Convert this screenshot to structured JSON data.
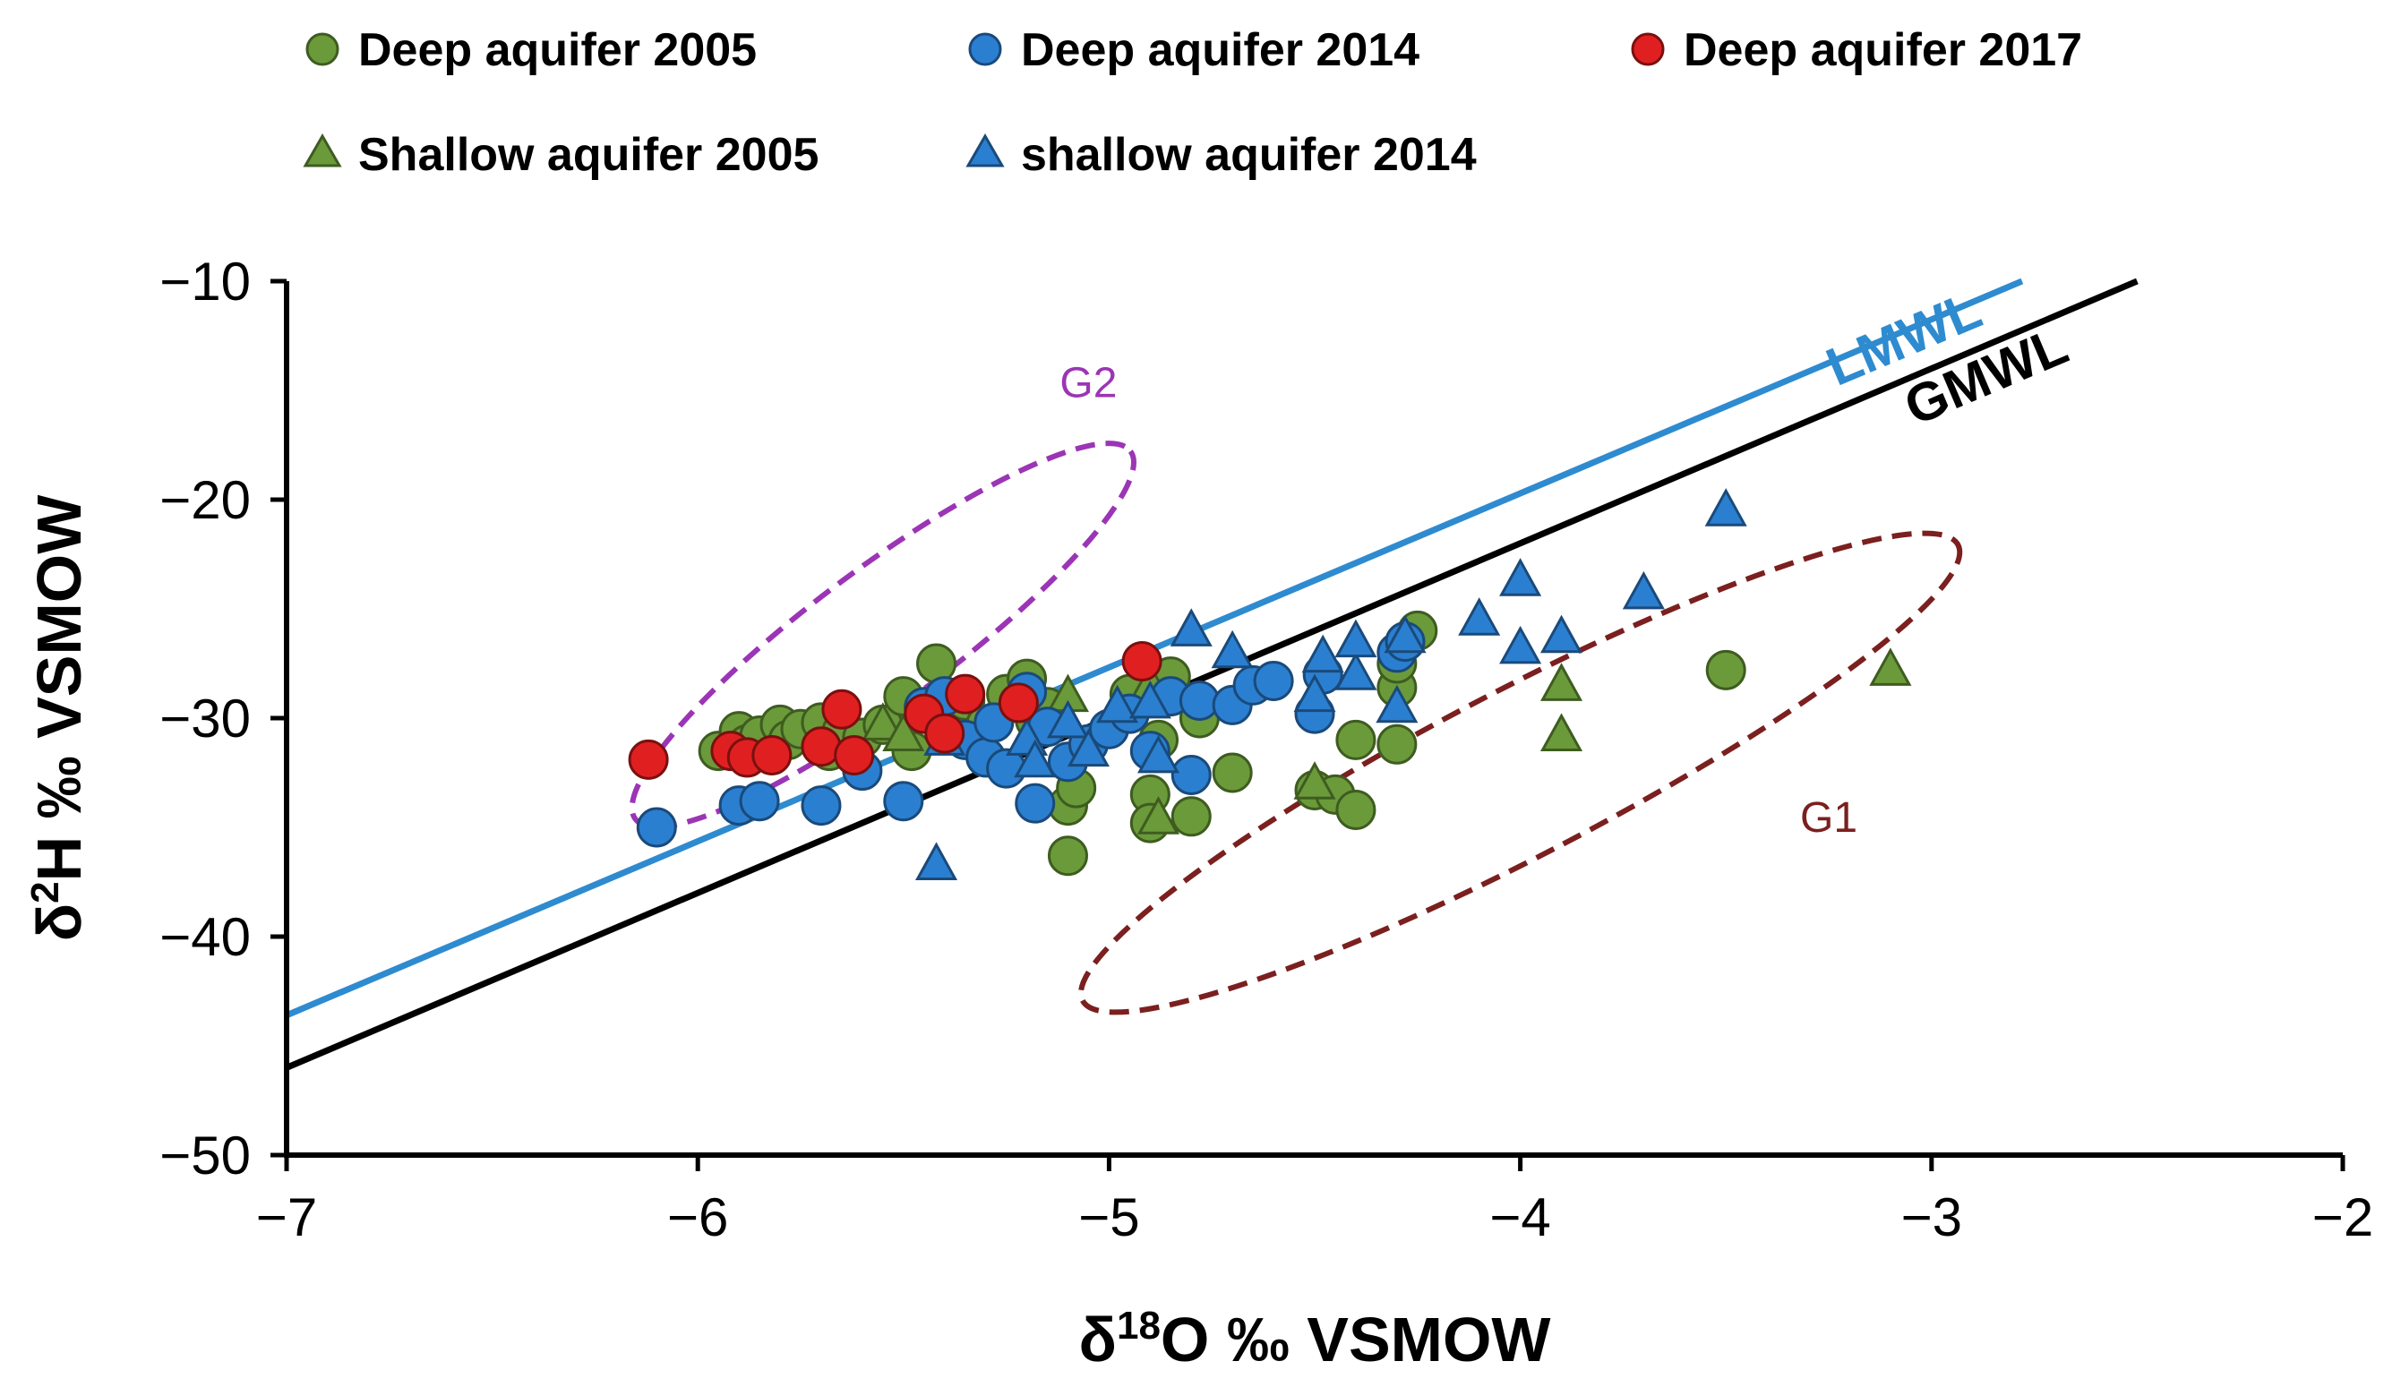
{
  "chart_data": {
    "type": "scatter",
    "title": "",
    "xlabel_main": "δ",
    "xlabel_sup": "18",
    "xlabel_rest": "O ‰ VSMOW",
    "ylabel_main": "δ",
    "ylabel_sup": "2",
    "ylabel_rest": "H ‰ VSMOW",
    "xlim": [
      -7,
      -2
    ],
    "ylim": [
      -50,
      -10
    ],
    "xticks": [
      -7,
      -6,
      -5,
      -4,
      -3,
      -2
    ],
    "yticks": [
      -10,
      -20,
      -30,
      -40,
      -50
    ],
    "xtick_labels": [
      "−7",
      "−6",
      "−5",
      "−4",
      "−3",
      "−2"
    ],
    "ytick_labels": [
      "−10",
      "−20",
      "−30",
      "−40",
      "−50"
    ],
    "grid": false,
    "legend_position": "top",
    "lines": [
      {
        "name": "LMWL",
        "label": "LMWL",
        "color": "#2e8bd0",
        "x": [
          -7,
          -2.78
        ],
        "y": [
          -43.6,
          -10
        ]
      },
      {
        "name": "GMWL",
        "label": "GMWL",
        "color": "#000000",
        "x": [
          -7,
          -2.5
        ],
        "y": [
          -46,
          -10
        ]
      }
    ],
    "groups": [
      {
        "label": "G2",
        "color": "#9b35b5",
        "cx": -5.55,
        "cy": -26.2,
        "rx": 1.5,
        "ry": 6.2,
        "rotation_deg": -36.6
      },
      {
        "label": "G1",
        "color": "#7b1f1f",
        "cx": -4.0,
        "cy": -32.5,
        "rx": 2.4,
        "ry": 7.6,
        "rotation_deg": -27.5
      }
    ],
    "series": [
      {
        "name": "Deep aquifer 2005",
        "marker": "circle",
        "color": "#6b9a3a",
        "edge": "#3e5c20",
        "x": [
          -5.95,
          -5.9,
          -5.88,
          -5.85,
          -5.8,
          -5.78,
          -5.75,
          -5.7,
          -5.68,
          -5.65,
          -5.6,
          -5.55,
          -5.5,
          -5.48,
          -5.45,
          -5.42,
          -5.4,
          -5.35,
          -5.3,
          -5.25,
          -5.2,
          -5.18,
          -5.15,
          -5.1,
          -5.08,
          -5.1,
          -4.95,
          -4.9,
          -4.9,
          -4.88,
          -4.85,
          -4.8,
          -4.78,
          -4.7,
          -4.5,
          -4.45,
          -4.4,
          -4.4,
          -4.3,
          -4.3,
          -4.3,
          -4.28,
          -4.25,
          -3.5
        ],
        "y": [
          -31.5,
          -30.6,
          -31.2,
          -30.8,
          -30.3,
          -31.0,
          -30.5,
          -30.2,
          -31.5,
          -30.6,
          -30.9,
          -30.3,
          -29.0,
          -31.5,
          -29.5,
          -27.5,
          -30.0,
          -29.2,
          -30.3,
          -28.9,
          -28.2,
          -30.1,
          -29.5,
          -34.0,
          -33.2,
          -36.3,
          -28.9,
          -33.5,
          -34.8,
          -31.0,
          -28.1,
          -34.5,
          -30.0,
          -32.5,
          -33.3,
          -33.5,
          -31.0,
          -34.2,
          -28.6,
          -31.2,
          -27.5,
          -26.5,
          -26.0,
          -27.8
        ]
      },
      {
        "name": "Deep aquifer 2014",
        "marker": "circle",
        "color": "#2b7fd0",
        "edge": "#1a4a7a",
        "x": [
          -6.1,
          -5.9,
          -5.85,
          -5.7,
          -5.6,
          -5.5,
          -5.45,
          -5.4,
          -5.35,
          -5.3,
          -5.28,
          -5.25,
          -5.2,
          -5.18,
          -5.15,
          -5.1,
          -5.05,
          -5.0,
          -4.95,
          -4.9,
          -4.85,
          -4.8,
          -4.78,
          -4.7,
          -4.65,
          -4.6,
          -4.5,
          -4.48,
          -4.3,
          -4.28
        ],
        "y": [
          -35.0,
          -34.0,
          -33.8,
          -34.0,
          -32.4,
          -33.8,
          -29.5,
          -29.0,
          -31.0,
          -31.8,
          -30.2,
          -32.3,
          -28.8,
          -33.9,
          -30.4,
          -32.0,
          -31.2,
          -30.5,
          -29.8,
          -31.5,
          -29.0,
          -32.6,
          -29.2,
          -29.4,
          -28.5,
          -28.3,
          -29.8,
          -28.0,
          -27.0,
          -26.5
        ]
      },
      {
        "name": "Deep aquifer 2017",
        "marker": "circle",
        "color": "#e02020",
        "edge": "#7a1010",
        "x": [
          -6.12,
          -5.92,
          -5.88,
          -5.82,
          -5.7,
          -5.65,
          -5.62,
          -5.45,
          -5.4,
          -5.35,
          -5.22,
          -4.92
        ],
        "y": [
          -31.9,
          -31.5,
          -31.8,
          -31.7,
          -31.3,
          -29.6,
          -31.7,
          -29.8,
          -30.7,
          -28.9,
          -29.3,
          -27.4
        ]
      },
      {
        "name": "Shallow aquifer 2005",
        "marker": "triangle",
        "color": "#6b9a3a",
        "edge": "#3e5c20",
        "x": [
          -5.55,
          -5.5,
          -5.2,
          -5.1,
          -4.9,
          -4.88,
          -4.5,
          -3.9,
          -3.9,
          -3.1
        ],
        "y": [
          -30.3,
          -30.8,
          -29.5,
          -29.0,
          -28.5,
          -34.6,
          -33.0,
          -28.5,
          -30.8,
          -27.8
        ]
      },
      {
        "name": "shallow aquifer 2014",
        "marker": "triangle",
        "color": "#2b7fd0",
        "edge": "#1a4a7a",
        "x": [
          -5.42,
          -5.4,
          -5.2,
          -5.18,
          -5.1,
          -5.05,
          -4.98,
          -4.9,
          -4.88,
          -4.8,
          -4.7,
          -4.5,
          -4.48,
          -4.4,
          -4.4,
          -4.3,
          -4.28,
          -4.1,
          -4.0,
          -4.0,
          -3.9,
          -3.7,
          -3.5
        ],
        "y": [
          -36.7,
          -31.0,
          -31.0,
          -32.0,
          -30.2,
          -31.5,
          -29.5,
          -29.3,
          -31.8,
          -26.0,
          -27.0,
          -29.0,
          -27.2,
          -28.0,
          -26.5,
          -29.5,
          -26.3,
          -25.5,
          -23.7,
          -26.8,
          -26.3,
          -24.3,
          -20.5
        ]
      }
    ]
  }
}
